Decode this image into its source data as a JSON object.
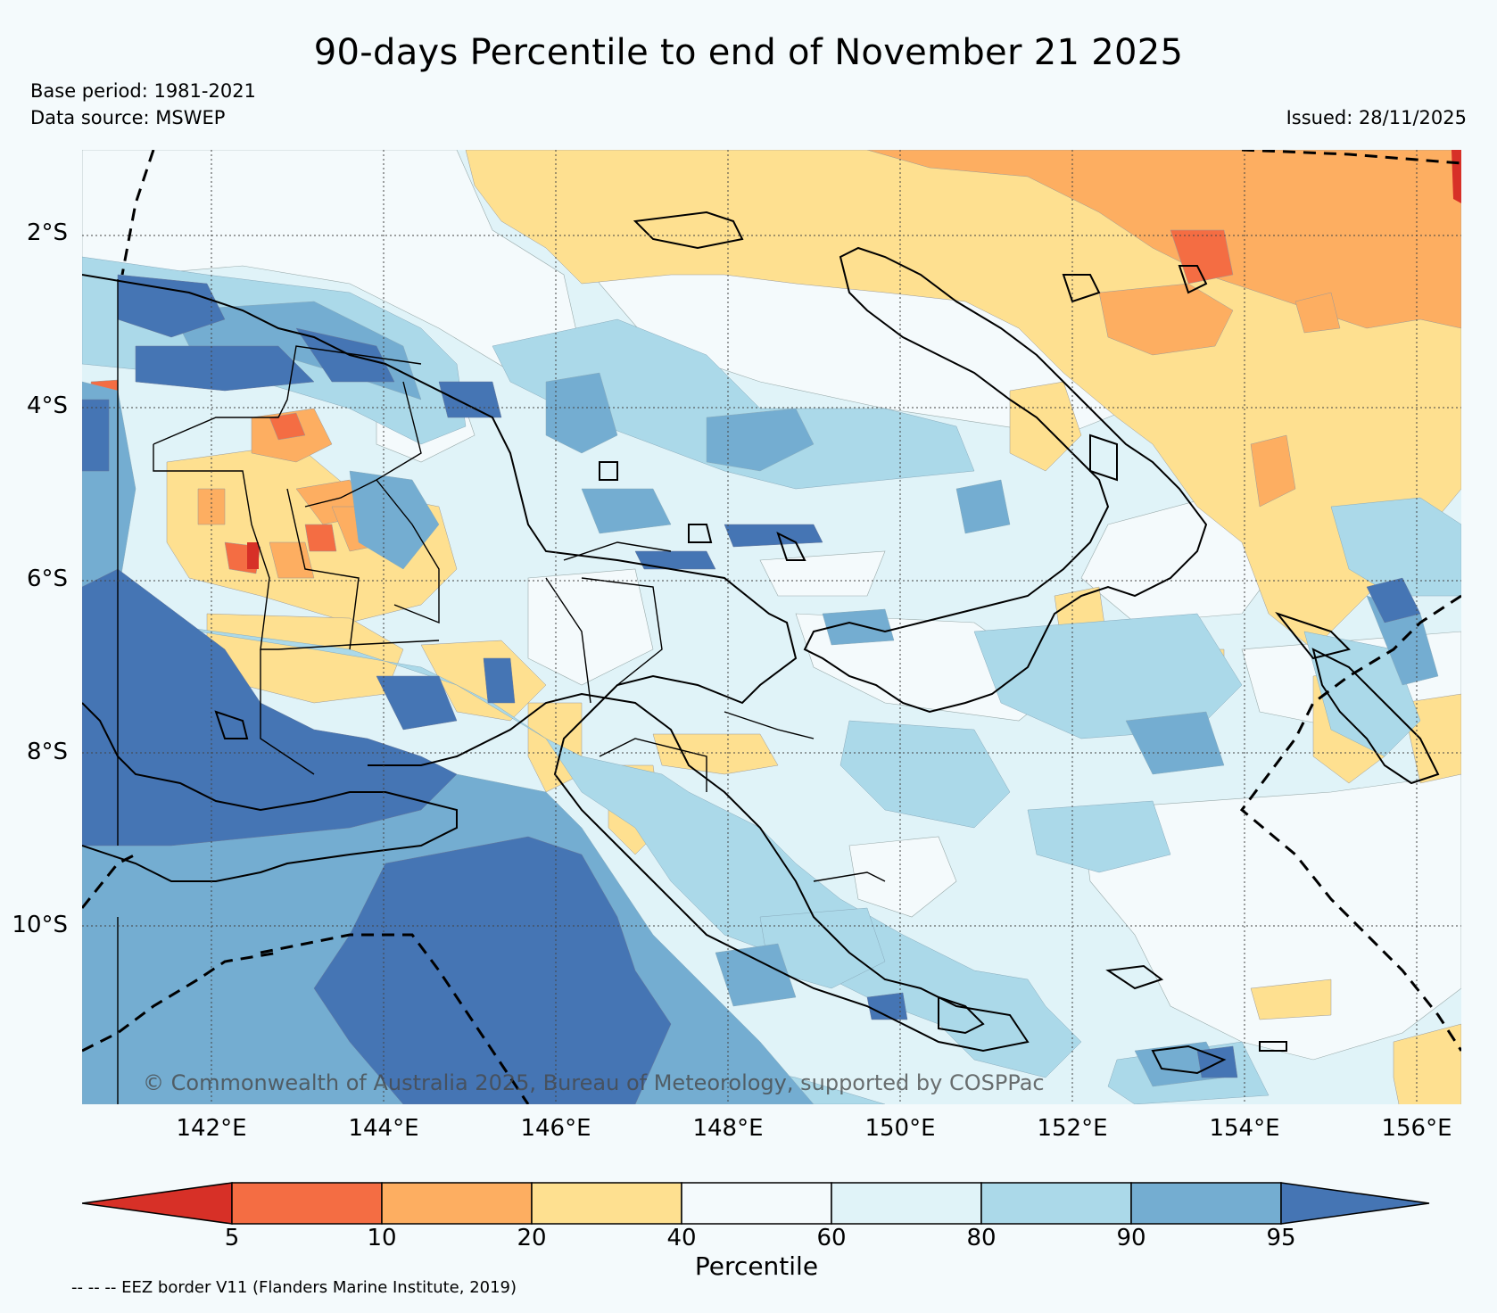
{
  "header": {
    "title": "90-days Percentile to end of November 21 2025",
    "base_period": "Base period: 1981-2021",
    "data_source": "Data source: MSWEP",
    "issued": "Issued: 28/11/2025"
  },
  "map": {
    "region": "Papua New Guinea",
    "lat_labels": [
      "2°S",
      "4°S",
      "6°S",
      "8°S",
      "10°S"
    ],
    "lon_labels": [
      "142°E",
      "144°E",
      "146°E",
      "148°E",
      "150°E",
      "152°E",
      "154°E",
      "156°E"
    ],
    "copyright": "© Commonwealth of Australia 2025, Bureau of Meteorology, supported by COSPPac",
    "gridlines": "dotted",
    "eez_border_style": "dashed"
  },
  "colorbar": {
    "label": "Percentile",
    "ticks": [
      "5",
      "10",
      "20",
      "40",
      "60",
      "80",
      "90",
      "95"
    ],
    "bins": [
      {
        "range": "<5",
        "color": "#d73027"
      },
      {
        "range": "5-10",
        "color": "#f46d43"
      },
      {
        "range": "10-20",
        "color": "#fdae61"
      },
      {
        "range": "20-40",
        "color": "#fee090"
      },
      {
        "range": "40-60",
        "color": "#f4fafc"
      },
      {
        "range": "60-80",
        "color": "#e0f3f8"
      },
      {
        "range": "80-90",
        "color": "#abd9e9"
      },
      {
        "range": "90-95",
        "color": "#74add1"
      },
      {
        "range": ">95",
        "color": "#4575b4"
      }
    ]
  },
  "footnote": "-- -- -- EEZ border V11 (Flanders Marine Institute, 2019)"
}
